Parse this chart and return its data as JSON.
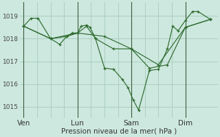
{
  "background_color": "#cde8df",
  "grid_color": "#aacfbf",
  "line_color": "#2d6a2d",
  "marker_color": "#2d6a2d",
  "xlabel": "Pression niveau de la mer( hPa )",
  "yticks": [
    1015,
    1016,
    1017,
    1018,
    1019
  ],
  "xtick_labels": [
    "Ven",
    "Lun",
    "Sam",
    "Dim"
  ],
  "xtick_positions": [
    0,
    3,
    6,
    9
  ],
  "ylim": [
    1014.5,
    1019.6
  ],
  "xlim": [
    -0.2,
    10.8
  ],
  "series": [
    {
      "points": [
        [
          0.0,
          1018.55
        ],
        [
          0.4,
          1018.9
        ],
        [
          0.8,
          1018.9
        ],
        [
          1.5,
          1018.0
        ],
        [
          2.0,
          1017.75
        ],
        [
          2.4,
          1018.1
        ],
        [
          2.7,
          1018.25
        ],
        [
          3.0,
          1018.25
        ],
        [
          3.2,
          1018.55
        ],
        [
          3.5,
          1018.6
        ],
        [
          3.7,
          1018.5
        ],
        [
          4.0,
          1018.0
        ],
        [
          4.5,
          1016.7
        ],
        [
          5.0,
          1016.65
        ],
        [
          5.5,
          1016.2
        ],
        [
          5.8,
          1015.85
        ],
        [
          6.1,
          1015.3
        ],
        [
          6.4,
          1014.85
        ],
        [
          7.0,
          1016.6
        ],
        [
          7.5,
          1016.65
        ],
        [
          8.0,
          1017.55
        ],
        [
          8.3,
          1018.55
        ],
        [
          8.6,
          1018.35
        ],
        [
          9.0,
          1018.8
        ],
        [
          9.4,
          1019.2
        ],
        [
          9.7,
          1019.2
        ],
        [
          10.4,
          1018.85
        ]
      ]
    },
    {
      "points": [
        [
          0.0,
          1018.55
        ],
        [
          1.5,
          1018.0
        ],
        [
          2.4,
          1018.1
        ],
        [
          3.0,
          1018.25
        ],
        [
          3.5,
          1018.55
        ],
        [
          4.0,
          1018.0
        ],
        [
          5.0,
          1017.55
        ],
        [
          6.0,
          1017.55
        ],
        [
          7.0,
          1016.7
        ],
        [
          8.0,
          1016.85
        ],
        [
          9.0,
          1018.5
        ],
        [
          10.4,
          1018.85
        ]
      ]
    },
    {
      "points": [
        [
          0.0,
          1018.55
        ],
        [
          1.5,
          1018.0
        ],
        [
          3.0,
          1018.25
        ],
        [
          4.5,
          1018.1
        ],
        [
          6.0,
          1017.55
        ],
        [
          7.5,
          1016.85
        ],
        [
          9.0,
          1018.5
        ],
        [
          10.4,
          1018.85
        ]
      ]
    }
  ]
}
